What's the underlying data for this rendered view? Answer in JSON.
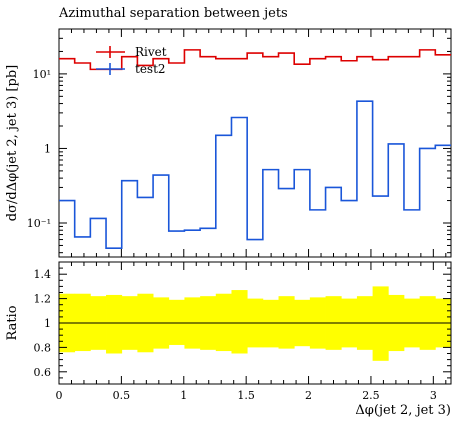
{
  "chart_data": {
    "type": "step-histogram",
    "title": "Azimuthal separation between jets",
    "xlabel": "Δφ(jet 2, jet 3)",
    "ylabel": "dσ/dΔφ(jet 2, jet 3) [pb]",
    "xlim": [
      0,
      3.1416
    ],
    "ylim": [
      0.035,
      40
    ],
    "yscale": "log",
    "bin_edges": [
      0,
      0.1257,
      0.2513,
      0.377,
      0.5027,
      0.6283,
      0.754,
      0.8796,
      1.0053,
      1.131,
      1.2566,
      1.3823,
      1.508,
      1.6336,
      1.7593,
      1.885,
      2.0106,
      2.1363,
      2.2619,
      2.3876,
      2.5133,
      2.6389,
      2.7646,
      2.8903,
      3.0159,
      3.1416
    ],
    "xticks": [
      0,
      0.5,
      1,
      1.5,
      2,
      2.5,
      3
    ],
    "xtick_labels": [
      "0",
      "0.5",
      "1",
      "1.5",
      "2",
      "2.5",
      "3"
    ],
    "yticks": [
      0.1,
      1,
      10
    ],
    "ytick_labels": [
      "10⁻¹",
      "1",
      "10¹"
    ],
    "legend_position": "top-left",
    "series": [
      {
        "name": "Rivet",
        "color": "#dd0000",
        "values": [
          16,
          14,
          11.5,
          11.5,
          17,
          13,
          16,
          14,
          21,
          17,
          16,
          16,
          19,
          17,
          19,
          13.5,
          16,
          17,
          15,
          17,
          15.5,
          17,
          17,
          21,
          18
        ]
      },
      {
        "name": "test2",
        "color": "#1a56d9",
        "values": [
          0.2,
          0.065,
          0.115,
          0.046,
          0.37,
          0.22,
          0.44,
          0.078,
          0.08,
          0.085,
          1.5,
          2.6,
          0.06,
          0.52,
          0.29,
          0.52,
          0.15,
          0.3,
          0.2,
          4.3,
          0.23,
          1.15,
          0.15,
          1,
          1.1
        ]
      }
    ],
    "ratio_panel": {
      "ylabel": "Ratio",
      "ylim": [
        0.5,
        1.5
      ],
      "yticks": [
        0.6,
        0.8,
        1,
        1.2,
        1.4
      ],
      "ytick_labels": [
        "0.6",
        "0.8",
        "1",
        "1.2",
        "1.4"
      ],
      "reference_line": 1,
      "band_color": "#ffff00",
      "band_upper": [
        1.24,
        1.24,
        1.22,
        1.23,
        1.22,
        1.24,
        1.21,
        1.19,
        1.21,
        1.22,
        1.24,
        1.27,
        1.2,
        1.19,
        1.22,
        1.19,
        1.21,
        1.22,
        1.2,
        1.22,
        1.3,
        1.23,
        1.2,
        1.22,
        1.2
      ],
      "band_lower": [
        0.76,
        0.77,
        0.78,
        0.75,
        0.78,
        0.76,
        0.79,
        0.82,
        0.79,
        0.78,
        0.77,
        0.75,
        0.8,
        0.8,
        0.79,
        0.81,
        0.79,
        0.78,
        0.8,
        0.78,
        0.69,
        0.77,
        0.8,
        0.78,
        0.8
      ]
    }
  }
}
